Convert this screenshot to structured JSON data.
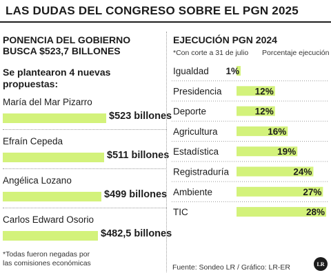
{
  "title": "LAS DUDAS DEL CONGRESO SOBRE EL PGN 2025",
  "left": {
    "title": "PONENCIA DEL GOBIERNO BUSCA $523,7 BILLONES",
    "subtitle": "Se plantearon 4 nuevas propuestas:",
    "proposals": [
      {
        "name": "María del Mar Pizarro",
        "amount": 523,
        "label": "$523 billones"
      },
      {
        "name": "Efraín Cepeda",
        "amount": 511,
        "label": "$511 billones"
      },
      {
        "name": "Angélica Lozano",
        "amount": 499,
        "label": "$499 billones"
      },
      {
        "name": "Carlos Edward Osorio",
        "amount": 482.5,
        "label": "$482,5 billones"
      }
    ],
    "note": "*Todas fueron negadas por las comisiones económicas"
  },
  "chart_data": {
    "type": "bar",
    "title": "EJECUCIÓN PGN 2024",
    "subtitle": "*Con corte a 31 de julio",
    "column_header": "Porcentaje ejecución",
    "categories": [
      "Igualdad",
      "Presidencia",
      "Deporte",
      "Agricultura",
      "Estadística",
      "Registraduría",
      "Ambiente",
      "TIC"
    ],
    "values": [
      1,
      12,
      12,
      16,
      19,
      24,
      27,
      28
    ],
    "value_labels": [
      "1%",
      "12%",
      "12%",
      "16%",
      "19%",
      "24%",
      "27%",
      "28%"
    ],
    "orientation": "horizontal",
    "xlim": [
      0,
      28
    ]
  },
  "colors": {
    "bar": "#d3f27b",
    "text": "#1c1c1c"
  },
  "source": "Fuente: Sondeo LR / Gráfico: LR-ER",
  "logo": "LR"
}
